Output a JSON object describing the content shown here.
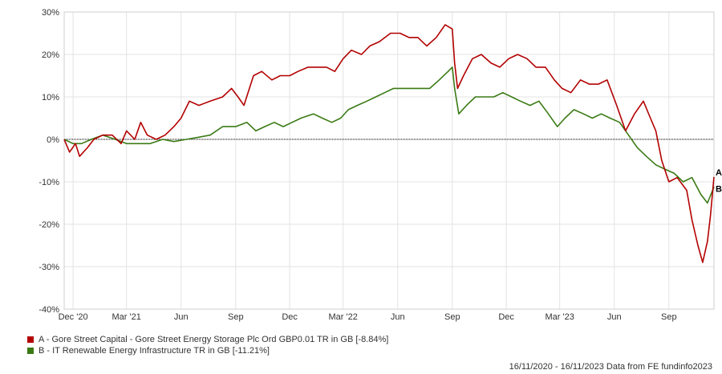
{
  "chart_data": {
    "type": "line",
    "ylim": [
      -40,
      30
    ],
    "y_ticks": [
      30,
      20,
      10,
      0,
      -10,
      -20,
      -30,
      -40
    ],
    "y_tick_labels": [
      "30%",
      "20%",
      "10%",
      "0%",
      "-10%",
      "-20%",
      "-30%",
      "-40%"
    ],
    "x_range": [
      "2020-11-16",
      "2023-11-16"
    ],
    "x_ticks": [
      {
        "date": "2020-12-01",
        "label": "Dec '20"
      },
      {
        "date": "2021-03-01",
        "label": "Mar '21"
      },
      {
        "date": "2021-06-01",
        "label": "Jun"
      },
      {
        "date": "2021-09-01",
        "label": "Sep"
      },
      {
        "date": "2021-12-01",
        "label": "Dec"
      },
      {
        "date": "2022-03-01",
        "label": "Mar '22"
      },
      {
        "date": "2022-06-01",
        "label": "Jun"
      },
      {
        "date": "2022-09-01",
        "label": "Sep"
      },
      {
        "date": "2022-12-01",
        "label": "Dec"
      },
      {
        "date": "2023-03-01",
        "label": "Mar '23"
      },
      {
        "date": "2023-06-01",
        "label": "Jun"
      },
      {
        "date": "2023-09-01",
        "label": "Sep"
      }
    ],
    "grid": true,
    "zero_line": true,
    "series": [
      {
        "name": "A - Gore Street Capital - Gore Street Energy Storage Plc Ord GBP0.01 TR in GB [-8.84%]",
        "end_label": "A",
        "color": "#b30000",
        "points": [
          [
            "2020-11-16",
            0
          ],
          [
            "2020-11-25",
            -3
          ],
          [
            "2020-12-05",
            -1
          ],
          [
            "2020-12-12",
            -4
          ],
          [
            "2020-12-25",
            -2
          ],
          [
            "2021-01-05",
            0
          ],
          [
            "2021-01-20",
            1
          ],
          [
            "2021-02-05",
            1
          ],
          [
            "2021-02-20",
            -1
          ],
          [
            "2021-03-01",
            2
          ],
          [
            "2021-03-15",
            0
          ],
          [
            "2021-03-25",
            4
          ],
          [
            "2021-04-05",
            1
          ],
          [
            "2021-04-20",
            0
          ],
          [
            "2021-05-05",
            1
          ],
          [
            "2021-05-20",
            3
          ],
          [
            "2021-06-01",
            5
          ],
          [
            "2021-06-15",
            9
          ],
          [
            "2021-07-01",
            8
          ],
          [
            "2021-07-20",
            9
          ],
          [
            "2021-08-10",
            10
          ],
          [
            "2021-08-25",
            12
          ],
          [
            "2021-09-05",
            10
          ],
          [
            "2021-09-15",
            8
          ],
          [
            "2021-10-01",
            15
          ],
          [
            "2021-10-15",
            16
          ],
          [
            "2021-11-01",
            14
          ],
          [
            "2021-11-15",
            15
          ],
          [
            "2021-12-01",
            15
          ],
          [
            "2021-12-15",
            16
          ],
          [
            "2022-01-01",
            17
          ],
          [
            "2022-01-15",
            17
          ],
          [
            "2022-02-01",
            17
          ],
          [
            "2022-02-15",
            16
          ],
          [
            "2022-03-01",
            19
          ],
          [
            "2022-03-15",
            21
          ],
          [
            "2022-04-01",
            20
          ],
          [
            "2022-04-15",
            22
          ],
          [
            "2022-05-01",
            23
          ],
          [
            "2022-05-20",
            25
          ],
          [
            "2022-06-05",
            25
          ],
          [
            "2022-06-20",
            24
          ],
          [
            "2022-07-05",
            24
          ],
          [
            "2022-07-20",
            22
          ],
          [
            "2022-08-05",
            24
          ],
          [
            "2022-08-20",
            27
          ],
          [
            "2022-09-01",
            26
          ],
          [
            "2022-09-05",
            18
          ],
          [
            "2022-09-10",
            12
          ],
          [
            "2022-09-20",
            15
          ],
          [
            "2022-10-05",
            19
          ],
          [
            "2022-10-20",
            20
          ],
          [
            "2022-11-05",
            18
          ],
          [
            "2022-11-20",
            17
          ],
          [
            "2022-12-05",
            19
          ],
          [
            "2022-12-20",
            20
          ],
          [
            "2023-01-05",
            19
          ],
          [
            "2023-01-20",
            17
          ],
          [
            "2023-02-05",
            17
          ],
          [
            "2023-02-20",
            14
          ],
          [
            "2023-03-05",
            12
          ],
          [
            "2023-03-20",
            11
          ],
          [
            "2023-04-05",
            14
          ],
          [
            "2023-04-20",
            13
          ],
          [
            "2023-05-05",
            13
          ],
          [
            "2023-05-20",
            14
          ],
          [
            "2023-06-05",
            8
          ],
          [
            "2023-06-20",
            2
          ],
          [
            "2023-07-05",
            6
          ],
          [
            "2023-07-20",
            9
          ],
          [
            "2023-08-01",
            5
          ],
          [
            "2023-08-10",
            2
          ],
          [
            "2023-08-20",
            -5
          ],
          [
            "2023-09-01",
            -10
          ],
          [
            "2023-09-15",
            -9
          ],
          [
            "2023-10-01",
            -12
          ],
          [
            "2023-10-10",
            -19
          ],
          [
            "2023-10-20",
            -25
          ],
          [
            "2023-10-28",
            -29
          ],
          [
            "2023-11-05",
            -24
          ],
          [
            "2023-11-10",
            -18
          ],
          [
            "2023-11-16",
            -8.84
          ]
        ]
      },
      {
        "name": "B - IT Renewable Energy Infrastructure TR in GB [-11.21%]",
        "end_label": "B",
        "color": "#3a7a14",
        "points": [
          [
            "2020-11-16",
            0
          ],
          [
            "2020-12-01",
            -1
          ],
          [
            "2020-12-15",
            -1
          ],
          [
            "2021-01-01",
            0
          ],
          [
            "2021-01-20",
            1
          ],
          [
            "2021-02-10",
            0
          ],
          [
            "2021-03-01",
            -1
          ],
          [
            "2021-03-20",
            -1
          ],
          [
            "2021-04-10",
            -1
          ],
          [
            "2021-05-01",
            0
          ],
          [
            "2021-05-20",
            -0.5
          ],
          [
            "2021-06-10",
            0
          ],
          [
            "2021-07-01",
            0.5
          ],
          [
            "2021-07-20",
            1
          ],
          [
            "2021-08-10",
            3
          ],
          [
            "2021-09-01",
            3
          ],
          [
            "2021-09-20",
            4
          ],
          [
            "2021-10-05",
            2
          ],
          [
            "2021-10-20",
            3
          ],
          [
            "2021-11-05",
            4
          ],
          [
            "2021-11-20",
            3
          ],
          [
            "2021-12-05",
            4
          ],
          [
            "2021-12-20",
            5
          ],
          [
            "2022-01-10",
            6
          ],
          [
            "2022-01-25",
            5
          ],
          [
            "2022-02-10",
            4
          ],
          [
            "2022-02-25",
            5
          ],
          [
            "2022-03-10",
            7
          ],
          [
            "2022-03-25",
            8
          ],
          [
            "2022-04-10",
            9
          ],
          [
            "2022-04-25",
            10
          ],
          [
            "2022-05-10",
            11
          ],
          [
            "2022-05-25",
            12
          ],
          [
            "2022-06-10",
            12
          ],
          [
            "2022-06-25",
            12
          ],
          [
            "2022-07-10",
            12
          ],
          [
            "2022-07-25",
            12
          ],
          [
            "2022-08-10",
            14
          ],
          [
            "2022-08-25",
            16
          ],
          [
            "2022-09-01",
            17
          ],
          [
            "2022-09-05",
            12
          ],
          [
            "2022-09-12",
            6
          ],
          [
            "2022-09-25",
            8
          ],
          [
            "2022-10-10",
            10
          ],
          [
            "2022-10-25",
            10
          ],
          [
            "2022-11-10",
            10
          ],
          [
            "2022-11-25",
            11
          ],
          [
            "2022-12-10",
            10
          ],
          [
            "2022-12-25",
            9
          ],
          [
            "2023-01-10",
            8
          ],
          [
            "2023-01-25",
            9
          ],
          [
            "2023-02-10",
            6
          ],
          [
            "2023-02-25",
            3
          ],
          [
            "2023-03-10",
            5
          ],
          [
            "2023-03-25",
            7
          ],
          [
            "2023-04-10",
            6
          ],
          [
            "2023-04-25",
            5
          ],
          [
            "2023-05-10",
            6
          ],
          [
            "2023-05-25",
            5
          ],
          [
            "2023-06-10",
            4
          ],
          [
            "2023-06-25",
            1
          ],
          [
            "2023-07-10",
            -2
          ],
          [
            "2023-07-25",
            -4
          ],
          [
            "2023-08-10",
            -6
          ],
          [
            "2023-08-25",
            -7
          ],
          [
            "2023-09-10",
            -8
          ],
          [
            "2023-09-25",
            -10
          ],
          [
            "2023-10-10",
            -9
          ],
          [
            "2023-10-25",
            -13
          ],
          [
            "2023-11-05",
            -15
          ],
          [
            "2023-11-16",
            -11.21
          ]
        ]
      }
    ]
  },
  "footer": {
    "text": "16/11/2020 - 16/11/2023 Data from FE fundinfo2023"
  }
}
